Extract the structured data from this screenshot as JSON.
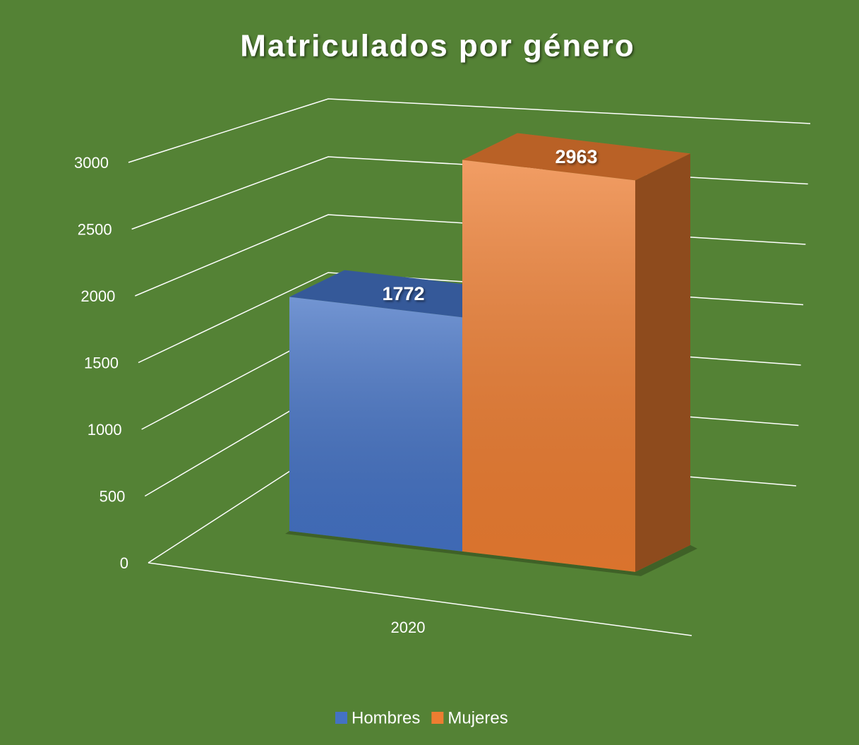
{
  "chart_data": {
    "type": "bar3d",
    "title": "Matriculados por género",
    "categories": [
      "2020"
    ],
    "series": [
      {
        "name": "Hombres",
        "color": "#4472c4",
        "values": [
          1772
        ]
      },
      {
        "name": "Mujeres",
        "color": "#ed7d31",
        "values": [
          2963
        ]
      }
    ],
    "ylim": [
      0,
      3000
    ],
    "yticks": [
      0,
      500,
      1000,
      1500,
      2000,
      2500,
      3000
    ],
    "grid": true,
    "legend": "bottom",
    "background": "#548235"
  }
}
